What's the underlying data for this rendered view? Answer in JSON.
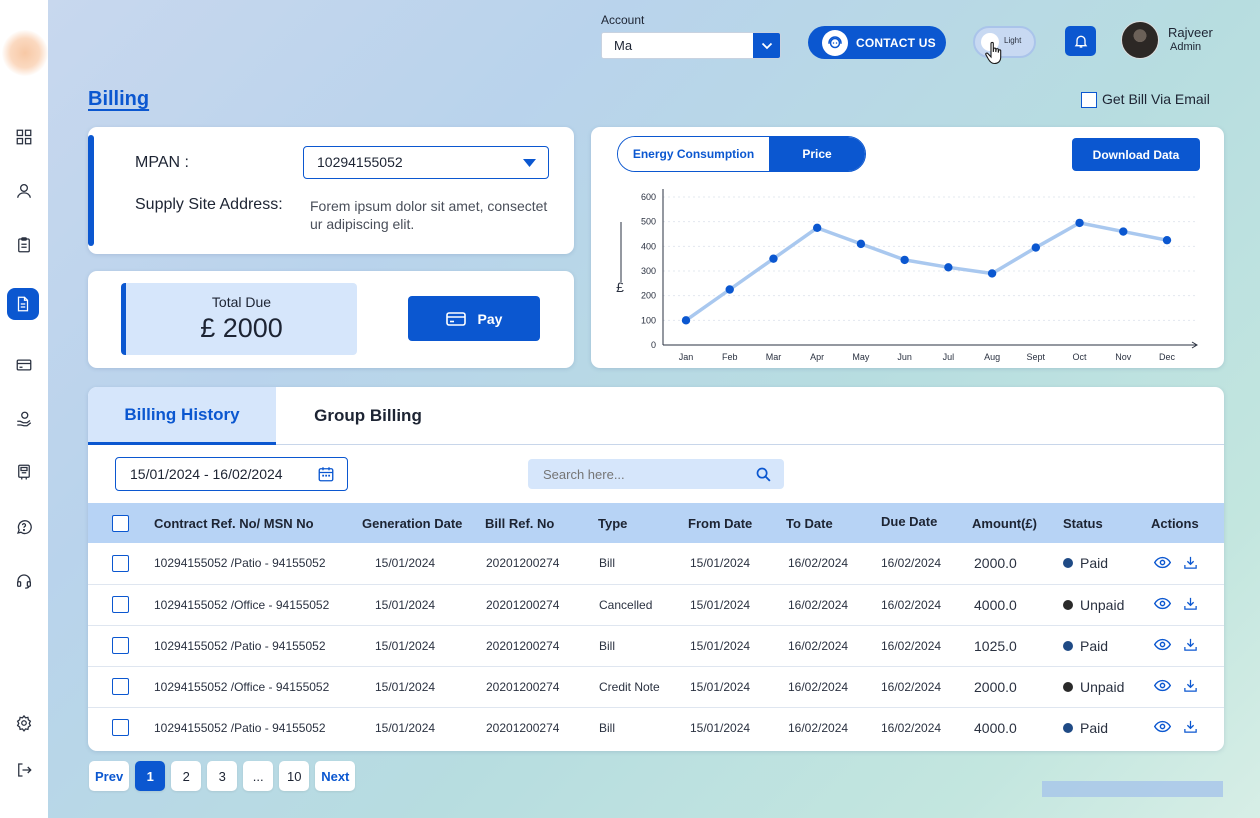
{
  "header": {
    "account_label": "Account",
    "account_value": "Ma",
    "contact_label": "CONTACT US",
    "theme_toggle_label": "Light",
    "user_name": "Rajveer",
    "user_role": "Admin"
  },
  "page": {
    "title": "Billing",
    "email_option_label": "Get Bill Via Email"
  },
  "supply": {
    "mpan_label": "MPAN :",
    "mpan_value": "10294155052",
    "address_label": "Supply Site Address:",
    "address_value": "Forem ipsum dolor sit amet, consectetur adipiscing elit."
  },
  "due": {
    "title": "Total Due",
    "amount": "£ 2000",
    "pay_label": "Pay"
  },
  "chart": {
    "toggle_options": [
      "Energy Consumption",
      "Price"
    ],
    "toggle_selected": "Price",
    "download_label": "Download Data"
  },
  "chart_data": {
    "type": "line",
    "categories": [
      "Jan",
      "Feb",
      "Mar",
      "Apr",
      "May",
      "Jun",
      "Jul",
      "Aug",
      "Sept",
      "Oct",
      "Nov",
      "Dec"
    ],
    "values": [
      100,
      225,
      350,
      475,
      410,
      345,
      315,
      290,
      395,
      495,
      460,
      425
    ],
    "ylabel": "£",
    "ylim": [
      0,
      600
    ],
    "yticks": [
      0,
      100,
      200,
      300,
      400,
      500,
      600
    ],
    "grid": true,
    "colors": {
      "line": "#a9c8ef",
      "point": "#0b57d0"
    }
  },
  "billing": {
    "tabs": [
      "Billing History",
      "Group Billing"
    ],
    "date_range": "15/01/2024 - 16/02/2024",
    "search_placeholder": "Search here...",
    "columns": [
      "Contract Ref. No/ MSN No",
      "Generation Date",
      "Bill Ref. No",
      "Type",
      "From Date",
      "To Date",
      "Due Date",
      "Amount(£)",
      "Status",
      "Actions"
    ],
    "rows": [
      {
        "contract": "10294155052 /Patio - 94155052",
        "gen_date": "15/01/2024",
        "bill_ref": "20201200274",
        "type": "Bill",
        "from": "15/01/2024",
        "to": "16/02/2024",
        "due": "16/02/2024",
        "amount": "2000.0",
        "status": "Paid"
      },
      {
        "contract": "10294155052 /Office - 94155052",
        "gen_date": "15/01/2024",
        "bill_ref": "20201200274",
        "type": "Cancelled",
        "from": "15/01/2024",
        "to": "16/02/2024",
        "due": "16/02/2024",
        "amount": "4000.0",
        "status": "Unpaid"
      },
      {
        "contract": "10294155052 /Patio - 94155052",
        "gen_date": "15/01/2024",
        "bill_ref": "20201200274",
        "type": "Bill",
        "from": "15/01/2024",
        "to": "16/02/2024",
        "due": "16/02/2024",
        "amount": "1025.0",
        "status": "Paid"
      },
      {
        "contract": "10294155052 /Office - 94155052",
        "gen_date": "15/01/2024",
        "bill_ref": "20201200274",
        "type": "Credit Note",
        "from": "15/01/2024",
        "to": "16/02/2024",
        "due": "16/02/2024",
        "amount": "2000.0",
        "status": "Unpaid"
      },
      {
        "contract": "10294155052 /Patio - 94155052",
        "gen_date": "15/01/2024",
        "bill_ref": "20201200274",
        "type": "Bill",
        "from": "15/01/2024",
        "to": "16/02/2024",
        "due": "16/02/2024",
        "amount": "4000.0",
        "status": "Paid"
      }
    ],
    "status_colors": {
      "Paid": "#1f4a85",
      "Unpaid": "#2a2a2a"
    }
  },
  "pagination": {
    "prev": "Prev",
    "pages": [
      "1",
      "2",
      "3",
      "...",
      "10"
    ],
    "current": "1",
    "next": "Next"
  },
  "sidebar": {
    "icons": [
      "dashboard-icon",
      "user-icon",
      "clipboard-icon",
      "billing-document-icon",
      "credit-card-icon",
      "hand-coin-icon",
      "meter-icon",
      "help-icon",
      "headset-icon",
      "settings-icon",
      "logout-icon"
    ],
    "active": "billing-document-icon"
  },
  "colors": {
    "accent": "#0b57d0",
    "light_accent": "#d6e6fb"
  }
}
